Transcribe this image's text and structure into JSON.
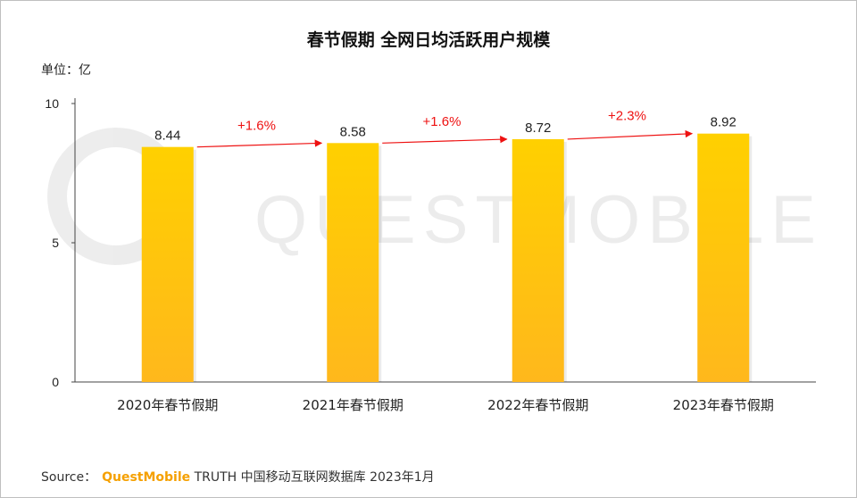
{
  "chart_data": {
    "type": "bar",
    "title": "春节假期 全网日均活跃用户规模",
    "unit_label": "单位：亿",
    "categories": [
      "2020年春节假期",
      "2021年春节假期",
      "2022年春节假期",
      "2023年春节假期"
    ],
    "values": [
      8.44,
      8.58,
      8.72,
      8.92
    ],
    "value_labels": [
      "8.44",
      "8.58",
      "8.72",
      "8.92"
    ],
    "growth_labels": [
      "+1.6%",
      "+1.6%",
      "+2.3%"
    ],
    "ylim": [
      0,
      10
    ],
    "yticks": [
      0,
      5,
      10
    ],
    "grid": false,
    "colors": {
      "bar_top": "#ffd000",
      "bar_bottom": "#ffb81c",
      "arrow": "#ee1111"
    },
    "watermark": "QUESTMOBILE"
  },
  "source": {
    "prefix": "Source：",
    "brand": "QuestMobile",
    "suffix": " TRUTH 中国移动互联网数据库 2023年1月"
  }
}
